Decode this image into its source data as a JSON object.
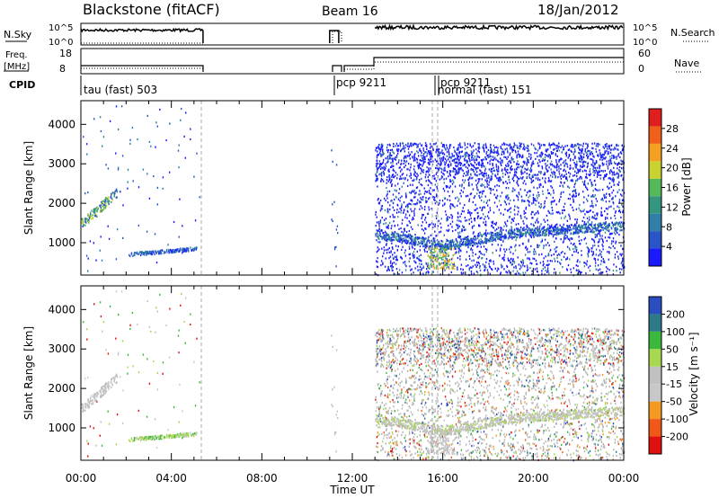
{
  "header": {
    "station": "Blackstone (fitACF)",
    "beam": "Beam 16",
    "date": "18/Jan/2012"
  },
  "side_labels": {
    "nsky": "N.Sky",
    "nsearch": "N.Search",
    "freq_line1": "Freq.",
    "freq_line2": "[MHz]",
    "nave": "Nave",
    "cpid": "CPID"
  },
  "strip_ticks": {
    "noise_left": [
      "10^5",
      "10^0"
    ],
    "noise_right": [
      "10^5",
      "10^0"
    ],
    "freq_left": [
      "18",
      "8"
    ],
    "nave_right": [
      "60",
      "0"
    ]
  },
  "cpid_labels": [
    "tau (fast) 503",
    "pcp 9211",
    "pcp 9211",
    "normal (fast) 151"
  ],
  "colors": {
    "power": [
      "#1a1aff",
      "#2a55c8",
      "#2f7fa8",
      "#35967f",
      "#55b85a",
      "#c9d22e",
      "#f4a020",
      "#f06018",
      "#e01e1e"
    ],
    "velocity": [
      "#e01010",
      "#f05818",
      "#f49a24",
      "#c8c8c8",
      "#c0c0c0",
      "#a8d850",
      "#3cb83c",
      "#2f7a8a",
      "#2a4dc0"
    ],
    "gray_scatter": "#b4b4b4"
  },
  "chart_data": [
    {
      "type": "heatmap",
      "name": "power",
      "ylabel": "Slant Range [km]",
      "xlabel": "",
      "x_tick_labels": [],
      "xlim": [
        0,
        24
      ],
      "ylim": [
        180,
        4600
      ],
      "y_ticks": [
        1000,
        2000,
        3000,
        4000
      ],
      "colorbar": {
        "label": "Power [dB]",
        "ticks": [
          4,
          8,
          12,
          16,
          20,
          24,
          28
        ],
        "range": [
          0,
          32
        ]
      },
      "data_gaps_hours": [
        [
          5.4,
          11.0
        ],
        [
          11.5,
          13.0
        ]
      ],
      "features": [
        {
          "desc": "band",
          "t_range": [
            0,
            1.5
          ],
          "range_km": [
            1450,
            2350
          ]
        },
        {
          "desc": "band",
          "t_range": [
            2.2,
            5.2
          ],
          "range_km": [
            720,
            900
          ]
        },
        {
          "desc": "band",
          "t_range": [
            13.0,
            24.0
          ],
          "range_km": [
            900,
            1450
          ]
        }
      ]
    },
    {
      "type": "heatmap",
      "name": "velocity",
      "ylabel": "Slant Range [km]",
      "xlabel": "Time UT",
      "x_tick_labels": [
        "00:00",
        "04:00",
        "08:00",
        "12:00",
        "16:00",
        "20:00",
        "00:00"
      ],
      "xlim": [
        0,
        24
      ],
      "ylim": [
        180,
        4600
      ],
      "y_ticks": [
        1000,
        2000,
        3000,
        4000
      ],
      "colorbar": {
        "label": "Velocity [m s⁻¹]",
        "ticks": [
          200,
          100,
          50,
          15,
          -15,
          -50,
          -100,
          -200
        ]
      }
    }
  ]
}
